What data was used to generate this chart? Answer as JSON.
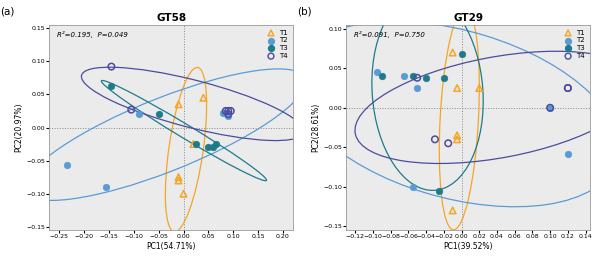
{
  "panel_a": {
    "title": "GT58",
    "xlabel": "PC1(54.71%)",
    "ylabel": "PC2(20.97%)",
    "annotation": "R²=0.195,  P=0.049",
    "xlim": [
      -0.27,
      0.22
    ],
    "ylim": [
      -0.155,
      0.155
    ],
    "xticks": [
      -0.25,
      -0.2,
      -0.15,
      -0.1,
      -0.05,
      0,
      0.05,
      0.1,
      0.15,
      0.2
    ],
    "yticks": [
      -0.15,
      -0.1,
      -0.05,
      0,
      0.05,
      0.1,
      0.15
    ],
    "T1": {
      "x": [
        0.0,
        -0.01,
        0.02,
        0.04,
        -0.01,
        -0.01
      ],
      "y": [
        -0.1,
        -0.075,
        -0.025,
        0.045,
        0.035,
        -0.08
      ],
      "color": "#F5A623",
      "marker": "^",
      "filled": false
    },
    "T2": {
      "x": [
        -0.235,
        -0.155,
        -0.09,
        0.08,
        0.085,
        0.09
      ],
      "y": [
        -0.057,
        -0.09,
        0.02,
        0.022,
        0.022,
        0.018
      ],
      "color": "#5B9BD5",
      "marker": "o",
      "filled": true
    },
    "T3": {
      "x": [
        -0.145,
        -0.05,
        0.025,
        0.05,
        0.06,
        0.065
      ],
      "y": [
        0.062,
        0.02,
        -0.025,
        -0.03,
        -0.03,
        -0.025
      ],
      "color": "#1E7B8C",
      "marker": "o",
      "filled": true
    },
    "T4": {
      "x": [
        -0.145,
        -0.105,
        0.085,
        0.09,
        0.095,
        0.09
      ],
      "y": [
        0.092,
        0.027,
        0.025,
        0.025,
        0.025,
        0.02
      ],
      "color": "#4B4C9E",
      "marker": "o",
      "filled": false
    }
  },
  "panel_b": {
    "title": "GT29",
    "xlabel": "PC1(39.52%)",
    "ylabel": "PC2(28.61%)",
    "annotation": "R²=0.091,  P=0.750",
    "xlim": [
      -0.13,
      0.145
    ],
    "ylim": [
      -0.155,
      0.105
    ],
    "xticks": [
      -0.12,
      -0.1,
      -0.08,
      -0.06,
      -0.04,
      -0.02,
      0,
      0.02,
      0.04,
      0.06,
      0.08,
      0.1,
      0.12,
      0.14
    ],
    "yticks": [
      -0.15,
      -0.1,
      -0.05,
      0,
      0.05,
      0.1
    ],
    "T1": {
      "x": [
        -0.01,
        -0.005,
        0.02,
        -0.005,
        -0.005,
        -0.01
      ],
      "y": [
        -0.13,
        -0.04,
        0.025,
        -0.035,
        0.025,
        0.07
      ],
      "color": "#F5A623",
      "marker": "^",
      "filled": false
    },
    "T2": {
      "x": [
        -0.095,
        -0.05,
        -0.065,
        -0.055,
        0.1,
        0.12
      ],
      "y": [
        0.045,
        0.025,
        0.04,
        -0.1,
        0.0,
        -0.058
      ],
      "color": "#5B9BD5",
      "marker": "o",
      "filled": true
    },
    "T3": {
      "x": [
        -0.09,
        -0.055,
        -0.04,
        -0.025,
        -0.02,
        0.0
      ],
      "y": [
        0.04,
        0.04,
        0.038,
        -0.105,
        0.038,
        0.068
      ],
      "color": "#1E7B8C",
      "marker": "o",
      "filled": true
    },
    "T4": {
      "x": [
        -0.05,
        -0.03,
        -0.015,
        0.1,
        0.12,
        0.12
      ],
      "y": [
        0.038,
        -0.04,
        -0.045,
        0.0,
        0.025,
        0.025
      ],
      "color": "#4B4C9E",
      "marker": "o",
      "filled": false
    }
  },
  "label_a": "(a)",
  "label_b": "(b)",
  "bg_color": "#EBEBEB"
}
